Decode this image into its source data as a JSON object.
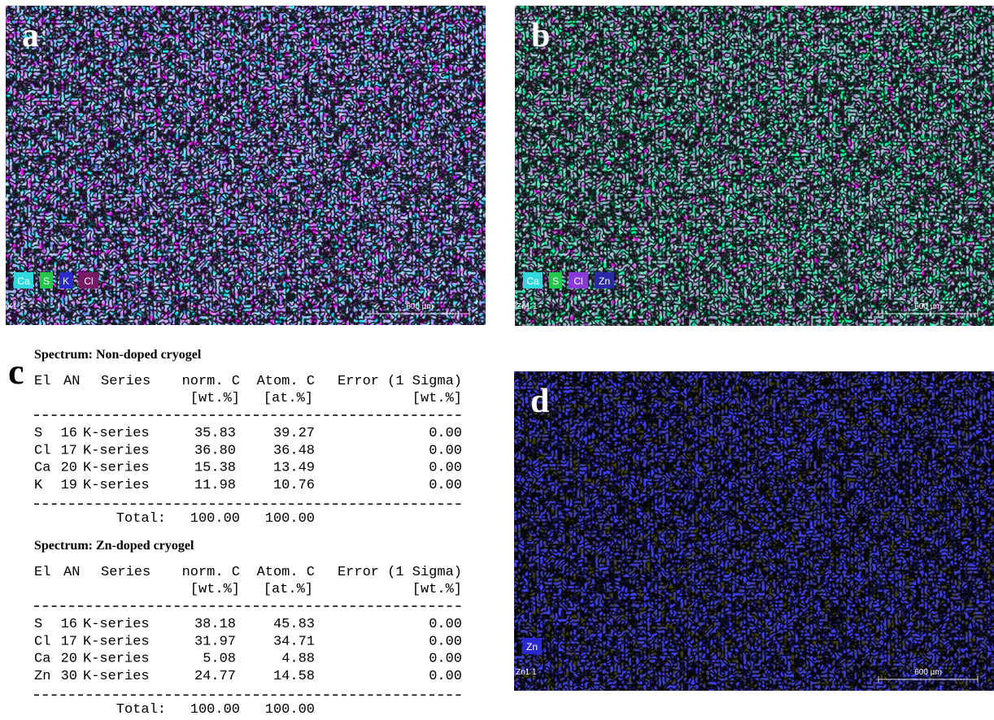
{
  "panels": [
    {
      "label": "a",
      "legend": [
        {
          "name": "Ca",
          "color": "#2fd8dc"
        },
        {
          "name": "S",
          "color": "#22c84a"
        },
        {
          "name": "K",
          "color": "#2a2ad0"
        },
        {
          "name": "Cl",
          "color": "#7a1a66"
        }
      ],
      "map_id": "K1 1",
      "scale": "600 µm"
    },
    {
      "label": "b",
      "legend": [
        {
          "name": "Ca",
          "color": "#2fd8dc"
        },
        {
          "name": "S",
          "color": "#22c84a"
        },
        {
          "name": "Cl",
          "color": "#8a3ad8"
        },
        {
          "name": "Zn",
          "color": "#2a2aa8"
        }
      ],
      "map_id": "Zn1 1",
      "scale": "600 µm"
    },
    {
      "label": "d",
      "legend": [
        {
          "name": "Zn",
          "color": "#2a2ad0"
        }
      ],
      "map_id": "Zn1 1",
      "scale": "600 µm"
    }
  ],
  "table_label": "c",
  "spectra": [
    {
      "title": "Spectrum: Non-doped cryogel",
      "header": [
        "El",
        "AN",
        "Series",
        "norm. C",
        "Atom. C",
        "Error (1 Sigma)"
      ],
      "units": [
        "[wt.%]",
        "[at.%]",
        "[wt.%]"
      ],
      "rows": [
        [
          "S",
          "16",
          "K-series",
          "35.83",
          "39.27",
          "0.00"
        ],
        [
          "Cl",
          "17",
          "K-series",
          "36.80",
          "36.48",
          "0.00"
        ],
        [
          "Ca",
          "20",
          "K-series",
          "15.38",
          "13.49",
          "0.00"
        ],
        [
          "K",
          "19",
          "K-series",
          "11.98",
          "10.76",
          "0.00"
        ]
      ],
      "total_label": "Total:",
      "total": [
        "100.00",
        "100.00"
      ]
    },
    {
      "title": "Spectrum: Zn-doped cryogel",
      "header": [
        "El",
        "AN",
        "Series",
        "norm. C",
        "Atom. C",
        "Error (1 Sigma)"
      ],
      "units": [
        "[wt.%]",
        "[at.%]",
        "[wt.%]"
      ],
      "rows": [
        [
          "S",
          "16",
          "K-series",
          "38.18",
          "45.83",
          "0.00"
        ],
        [
          "Cl",
          "17",
          "K-series",
          "31.97",
          "34.71",
          "0.00"
        ],
        [
          "Ca",
          "20",
          "K-series",
          "5.08",
          "4.88",
          "0.00"
        ],
        [
          "Zn",
          "30",
          "K-series",
          "24.77",
          "14.58",
          "0.00"
        ]
      ],
      "total_label": "Total:",
      "total": [
        "100.00",
        "100.00"
      ]
    }
  ]
}
